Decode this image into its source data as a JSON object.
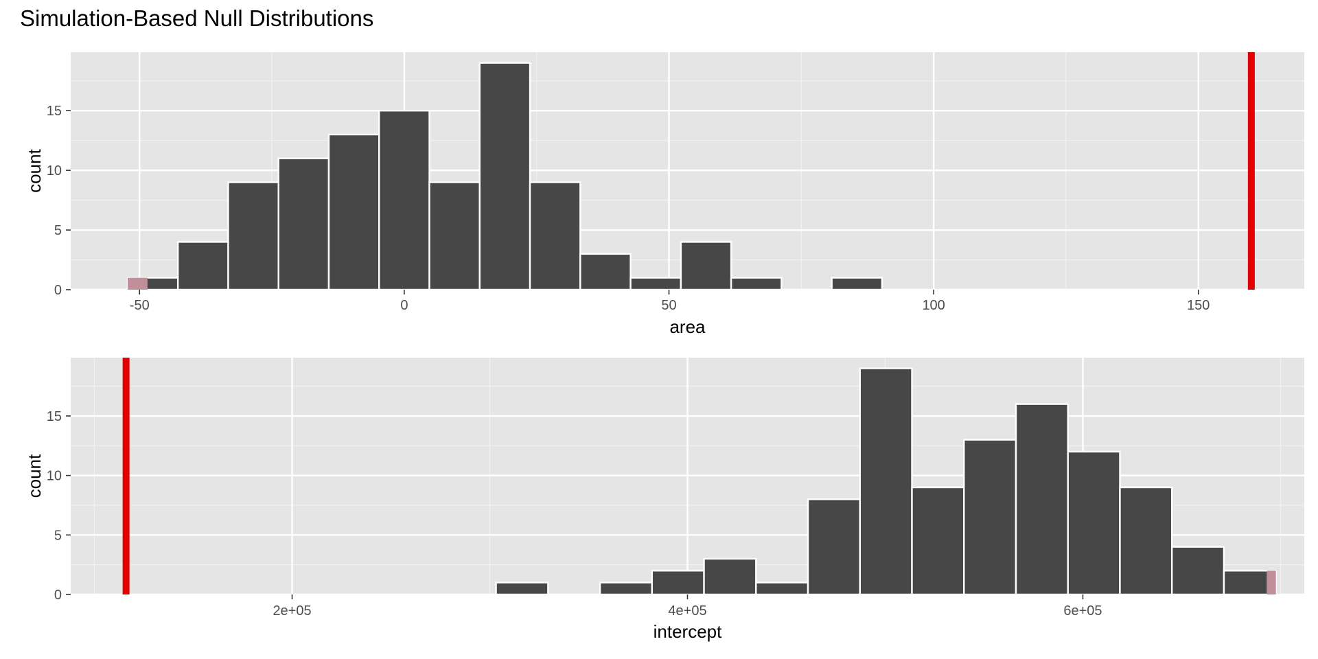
{
  "title": "Simulation-Based Null Distributions",
  "chart_data": [
    {
      "type": "bar",
      "xlabel": "area",
      "ylabel": "count",
      "xlim": [
        -63,
        170
      ],
      "ylim": [
        0,
        19.9
      ],
      "x_ticks": [
        -50,
        0,
        50,
        100,
        150
      ],
      "x_tick_labels": [
        "-50",
        "0",
        "50",
        "100",
        "150"
      ],
      "y_ticks": [
        0,
        5,
        10,
        15
      ],
      "y_tick_labels": [
        "0",
        "5",
        "10",
        "15"
      ],
      "bin_width": 9.5,
      "bins": [
        {
          "x": -47.5,
          "count": 1
        },
        {
          "x": -38.0,
          "count": 4
        },
        {
          "x": -28.5,
          "count": 9
        },
        {
          "x": -19.0,
          "count": 11
        },
        {
          "x": -9.5,
          "count": 13
        },
        {
          "x": 0.0,
          "count": 15
        },
        {
          "x": 9.5,
          "count": 9
        },
        {
          "x": 19.0,
          "count": 19
        },
        {
          "x": 28.5,
          "count": 9
        },
        {
          "x": 38.0,
          "count": 3
        },
        {
          "x": 47.5,
          "count": 1
        },
        {
          "x": 57.0,
          "count": 4
        },
        {
          "x": 66.5,
          "count": 1
        },
        {
          "x": 76.0,
          "count": 0
        },
        {
          "x": 85.5,
          "count": 1
        }
      ],
      "shaded_region": [
        -70,
        -48.5
      ],
      "observed_stat": 160,
      "bar_color": "#474747",
      "shade_color": "#c0909a",
      "line_color": "#e30000",
      "panel_background": "#e5e5e5",
      "grid": true
    },
    {
      "type": "bar",
      "xlabel": "intercept",
      "ylabel": "count",
      "xlim": [
        88000,
        712000
      ],
      "ylim": [
        0,
        19.9
      ],
      "x_ticks": [
        200000,
        400000,
        600000
      ],
      "x_tick_labels": [
        "2e+05",
        "4e+05",
        "6e+05"
      ],
      "y_ticks": [
        0,
        5,
        10,
        15
      ],
      "y_tick_labels": [
        "0",
        "5",
        "10",
        "15"
      ],
      "bin_width": 26300,
      "bins": [
        {
          "x": 290000,
          "count": 0
        },
        {
          "x": 316300,
          "count": 1
        },
        {
          "x": 342600,
          "count": 0
        },
        {
          "x": 368900,
          "count": 1
        },
        {
          "x": 395200,
          "count": 2
        },
        {
          "x": 421500,
          "count": 3
        },
        {
          "x": 447800,
          "count": 1
        },
        {
          "x": 474100,
          "count": 8
        },
        {
          "x": 500400,
          "count": 19
        },
        {
          "x": 526700,
          "count": 9
        },
        {
          "x": 553000,
          "count": 13
        },
        {
          "x": 579300,
          "count": 16
        },
        {
          "x": 605600,
          "count": 12
        },
        {
          "x": 631900,
          "count": 9
        },
        {
          "x": 658200,
          "count": 4
        },
        {
          "x": 684500,
          "count": 2
        }
      ],
      "shaded_region": [
        693000,
        720000
      ],
      "observed_stat": 116000,
      "bar_color": "#474747",
      "shade_color": "#c0909a",
      "line_color": "#e30000",
      "panel_background": "#e5e5e5",
      "grid": true
    }
  ]
}
